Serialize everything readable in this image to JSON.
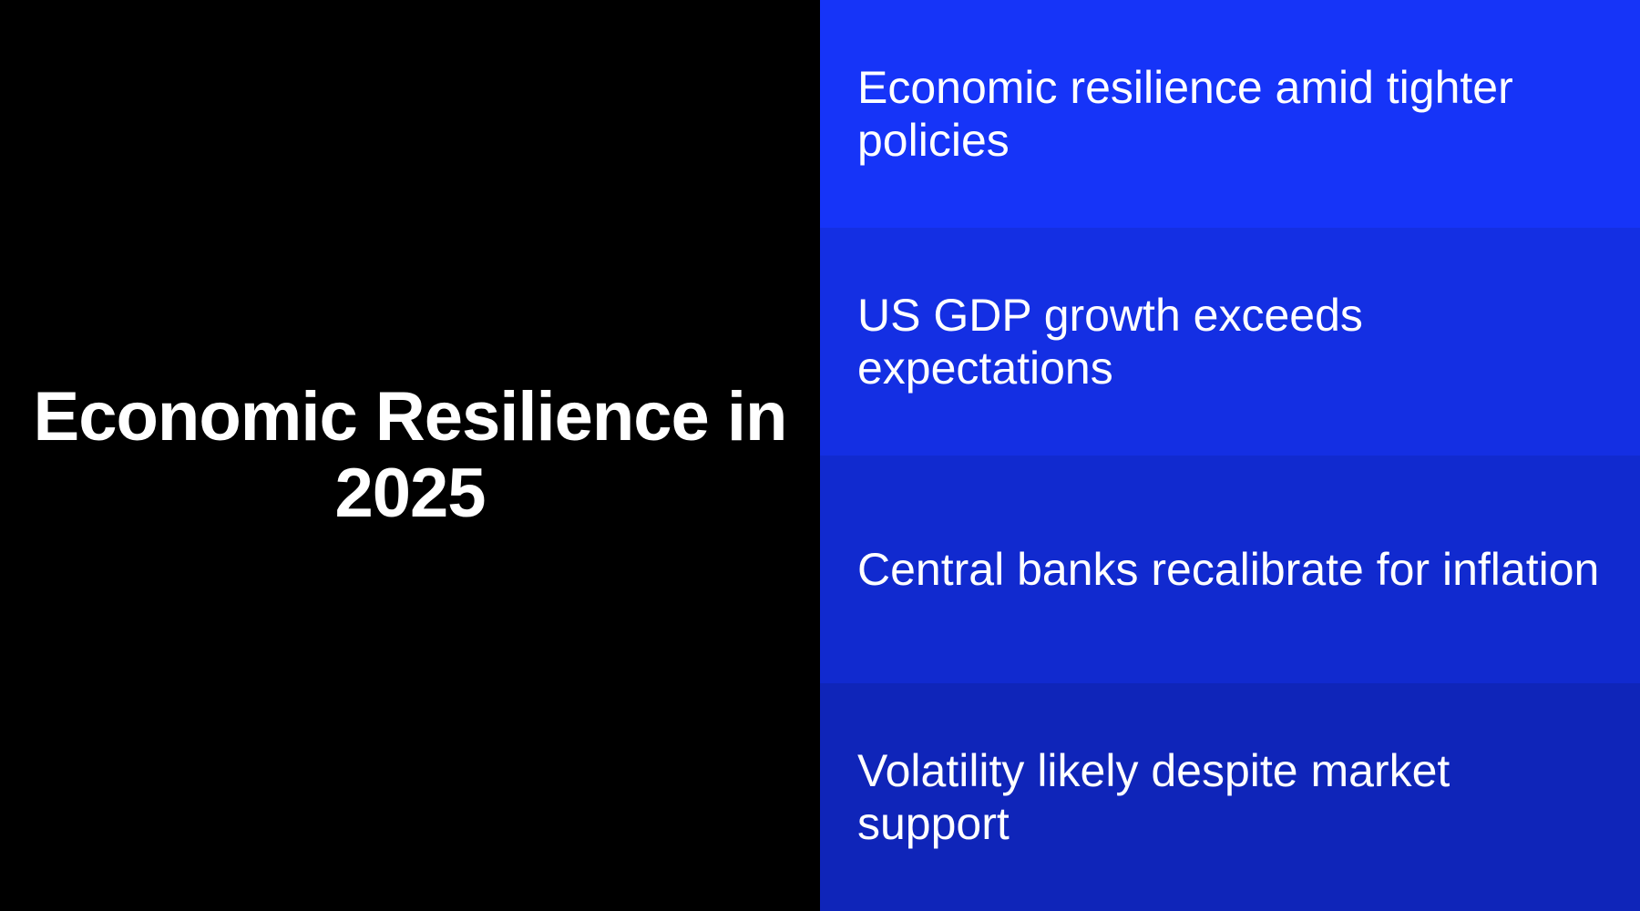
{
  "title": "Economic Resilience in 2025",
  "points": [
    {
      "text": "Economic resilience amid tighter policies",
      "color": "#1634F8"
    },
    {
      "text": "US GDP growth exceeds expectations",
      "color": "#142FE3"
    },
    {
      "text": "Central banks recalibrate for inflation",
      "color": "#112ACF"
    },
    {
      "text": "Volatility likely despite market support",
      "color": "#0F25B9"
    }
  ]
}
